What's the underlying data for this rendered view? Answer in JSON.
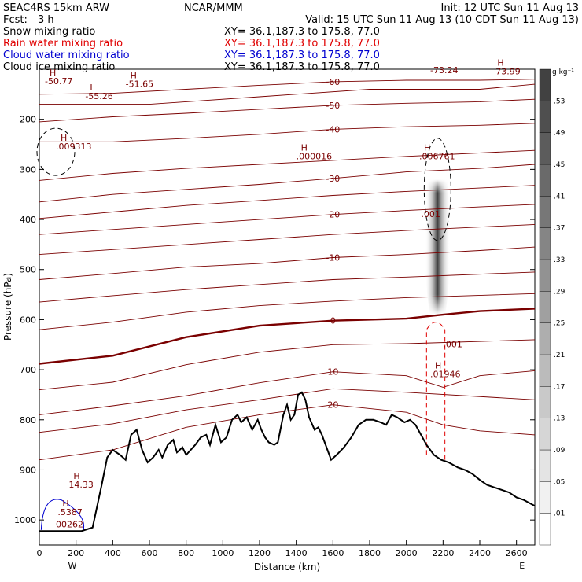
{
  "header": {
    "model": "SEAC4RS 15km ARW",
    "org": "NCAR/MMM",
    "init": "Init: 12 UTC Sun 11 Aug 13",
    "fcst_label": "Fcst:",
    "fcst_value": "3 h",
    "valid": "Valid: 15 UTC Sun 11 Aug 13 (10 CDT Sun 11 Aug 13)"
  },
  "fields": [
    {
      "name": "Snow mixing ratio",
      "xy": "XY=  36.1,187.3 to 175.8, 77.0",
      "color": "#000000"
    },
    {
      "name": "Rain water mixing ratio",
      "xy": "XY=  36.1,187.3 to 175.8, 77.0",
      "color": "#e00000"
    },
    {
      "name": "Cloud water mixing ratio",
      "xy": "XY=  36.1,187.3 to 175.8, 77.0",
      "color": "#0000d0"
    },
    {
      "name": "Cloud ice mixing ratio",
      "xy": "XY=  36.1,187.3 to 175.8, 77.0",
      "color": "#000000"
    }
  ],
  "chart_data": {
    "type": "contour",
    "xlabel": "Distance (km)",
    "ylabel": "Pressure (hPa)",
    "xlim": [
      0,
      2700
    ],
    "ylim": [
      1050,
      100
    ],
    "x_ticks": [
      0,
      200,
      400,
      600,
      800,
      1000,
      1200,
      1400,
      1600,
      1800,
      2000,
      2200,
      2400,
      2600
    ],
    "y_ticks": [
      200,
      300,
      400,
      500,
      600,
      700,
      800,
      900,
      1000
    ],
    "end_labels": {
      "left": "W",
      "right": "E"
    },
    "colorbar": {
      "unit": "g kg⁻¹",
      "levels": [
        ".01",
        ".05",
        ".09",
        ".13",
        ".17",
        ".21",
        ".25",
        ".29",
        ".33",
        ".37",
        ".41",
        ".45",
        ".49",
        ".53"
      ]
    },
    "temperature_contours": [
      {
        "value": -60,
        "label": "-60"
      },
      {
        "value": -50,
        "label": "-50"
      },
      {
        "value": -40,
        "label": "-40"
      },
      {
        "value": -30,
        "label": "-30"
      },
      {
        "value": -20,
        "label": "-20"
      },
      {
        "value": -10,
        "label": "-10"
      },
      {
        "value": 0,
        "label": "0"
      },
      {
        "value": 10,
        "label": "10"
      },
      {
        "value": 20,
        "label": "20"
      }
    ],
    "extrema": [
      {
        "kind": "H",
        "value": "-50.77",
        "x": 30,
        "p": 130,
        "color": "#7a0000"
      },
      {
        "kind": "H",
        "value": "-51.65",
        "x": 470,
        "p": 135,
        "color": "#7a0000"
      },
      {
        "kind": "L",
        "value": "-55.26",
        "x": 250,
        "p": 160,
        "color": "#7a0000"
      },
      {
        "kind": "",
        "value": "-73.24",
        "x": 2130,
        "p": 108,
        "color": "#7a0000"
      },
      {
        "kind": "H",
        "value": "-73.99",
        "x": 2470,
        "p": 110,
        "color": "#7a0000"
      },
      {
        "kind": "H",
        "value": ".009313",
        "x": 90,
        "p": 260,
        "color": "#000000"
      },
      {
        "kind": "H",
        "value": ".000016",
        "x": 1400,
        "p": 280,
        "color": "#000000"
      },
      {
        "kind": "H",
        "value": ".006761",
        "x": 2070,
        "p": 280,
        "color": "#000000"
      },
      {
        "kind": "",
        "value": ".001",
        "x": 2080,
        "p": 395,
        "color": "#000000"
      },
      {
        "kind": "",
        "value": ".001",
        "x": 2200,
        "p": 655,
        "color": "#e00000"
      },
      {
        "kind": "H",
        "value": ".01946",
        "x": 2130,
        "p": 715,
        "color": "#e00000"
      },
      {
        "kind": "H",
        "value": "14.33",
        "x": 160,
        "p": 935,
        "color": "#7a0000"
      },
      {
        "kind": "H",
        "value": ".5387",
        "x": 100,
        "p": 990,
        "color": "#0000d0"
      },
      {
        "kind": "",
        "value": "00262",
        "x": 90,
        "p": 1015,
        "color": "#e00000"
      }
    ],
    "terrain": [
      [
        0,
        1022
      ],
      [
        230,
        1022
      ],
      [
        290,
        1015
      ],
      [
        340,
        930
      ],
      [
        370,
        875
      ],
      [
        400,
        860
      ],
      [
        440,
        870
      ],
      [
        470,
        880
      ],
      [
        500,
        830
      ],
      [
        530,
        820
      ],
      [
        560,
        860
      ],
      [
        590,
        885
      ],
      [
        620,
        875
      ],
      [
        650,
        860
      ],
      [
        670,
        875
      ],
      [
        700,
        850
      ],
      [
        730,
        840
      ],
      [
        750,
        865
      ],
      [
        780,
        855
      ],
      [
        800,
        870
      ],
      [
        830,
        858
      ],
      [
        850,
        850
      ],
      [
        880,
        835
      ],
      [
        910,
        830
      ],
      [
        930,
        850
      ],
      [
        960,
        810
      ],
      [
        990,
        845
      ],
      [
        1020,
        835
      ],
      [
        1050,
        800
      ],
      [
        1080,
        790
      ],
      [
        1100,
        805
      ],
      [
        1130,
        795
      ],
      [
        1160,
        820
      ],
      [
        1190,
        800
      ],
      [
        1210,
        820
      ],
      [
        1230,
        835
      ],
      [
        1250,
        845
      ],
      [
        1280,
        850
      ],
      [
        1300,
        845
      ],
      [
        1330,
        790
      ],
      [
        1350,
        770
      ],
      [
        1370,
        800
      ],
      [
        1390,
        790
      ],
      [
        1410,
        750
      ],
      [
        1430,
        745
      ],
      [
        1450,
        760
      ],
      [
        1470,
        795
      ],
      [
        1500,
        820
      ],
      [
        1520,
        815
      ],
      [
        1540,
        830
      ],
      [
        1560,
        850
      ],
      [
        1590,
        880
      ],
      [
        1620,
        870
      ],
      [
        1660,
        855
      ],
      [
        1700,
        835
      ],
      [
        1740,
        810
      ],
      [
        1780,
        800
      ],
      [
        1820,
        800
      ],
      [
        1860,
        805
      ],
      [
        1890,
        810
      ],
      [
        1920,
        790
      ],
      [
        1950,
        795
      ],
      [
        1990,
        805
      ],
      [
        2020,
        800
      ],
      [
        2050,
        810
      ],
      [
        2080,
        830
      ],
      [
        2110,
        850
      ],
      [
        2150,
        870
      ],
      [
        2190,
        880
      ],
      [
        2230,
        885
      ],
      [
        2280,
        895
      ],
      [
        2320,
        900
      ],
      [
        2360,
        908
      ],
      [
        2400,
        920
      ],
      [
        2440,
        930
      ],
      [
        2480,
        935
      ],
      [
        2520,
        940
      ],
      [
        2560,
        945
      ],
      [
        2600,
        955
      ],
      [
        2640,
        960
      ],
      [
        2680,
        968
      ],
      [
        2700,
        972
      ]
    ]
  }
}
